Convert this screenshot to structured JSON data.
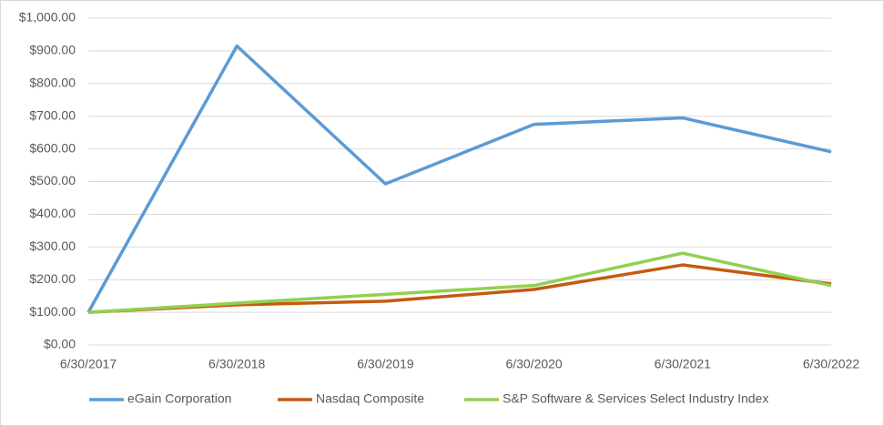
{
  "chart_data": {
    "type": "line",
    "categories": [
      "6/30/2017",
      "6/30/2018",
      "6/30/2019",
      "6/30/2020",
      "6/30/2021",
      "6/30/2022"
    ],
    "series": [
      {
        "name": "eGain Corporation",
        "color": "#5b9bd5",
        "values": [
          100,
          915,
          493,
          675,
          695,
          591
        ]
      },
      {
        "name": "Nasdaq Composite",
        "color": "#c55a11",
        "values": [
          100,
          123,
          134,
          170,
          245,
          187
        ]
      },
      {
        "name": "S&P Software & Services Select Industry Index",
        "color": "#92d050",
        "values": [
          100,
          128,
          155,
          182,
          281,
          182
        ]
      }
    ],
    "ylim": [
      0,
      1000
    ],
    "yticks": [
      {
        "value": 0,
        "label": "$0.00"
      },
      {
        "value": 100,
        "label": "$100.00"
      },
      {
        "value": 200,
        "label": "$200.00"
      },
      {
        "value": 300,
        "label": "$300.00"
      },
      {
        "value": 400,
        "label": "$400.00"
      },
      {
        "value": 500,
        "label": "$500.00"
      },
      {
        "value": 600,
        "label": "$600.00"
      },
      {
        "value": 700,
        "label": "$700.00"
      },
      {
        "value": 800,
        "label": "$800.00"
      },
      {
        "value": 900,
        "label": "$900.00"
      },
      {
        "value": 1000,
        "label": "$1,000.00"
      }
    ],
    "grid": true,
    "legend": "bottom"
  }
}
